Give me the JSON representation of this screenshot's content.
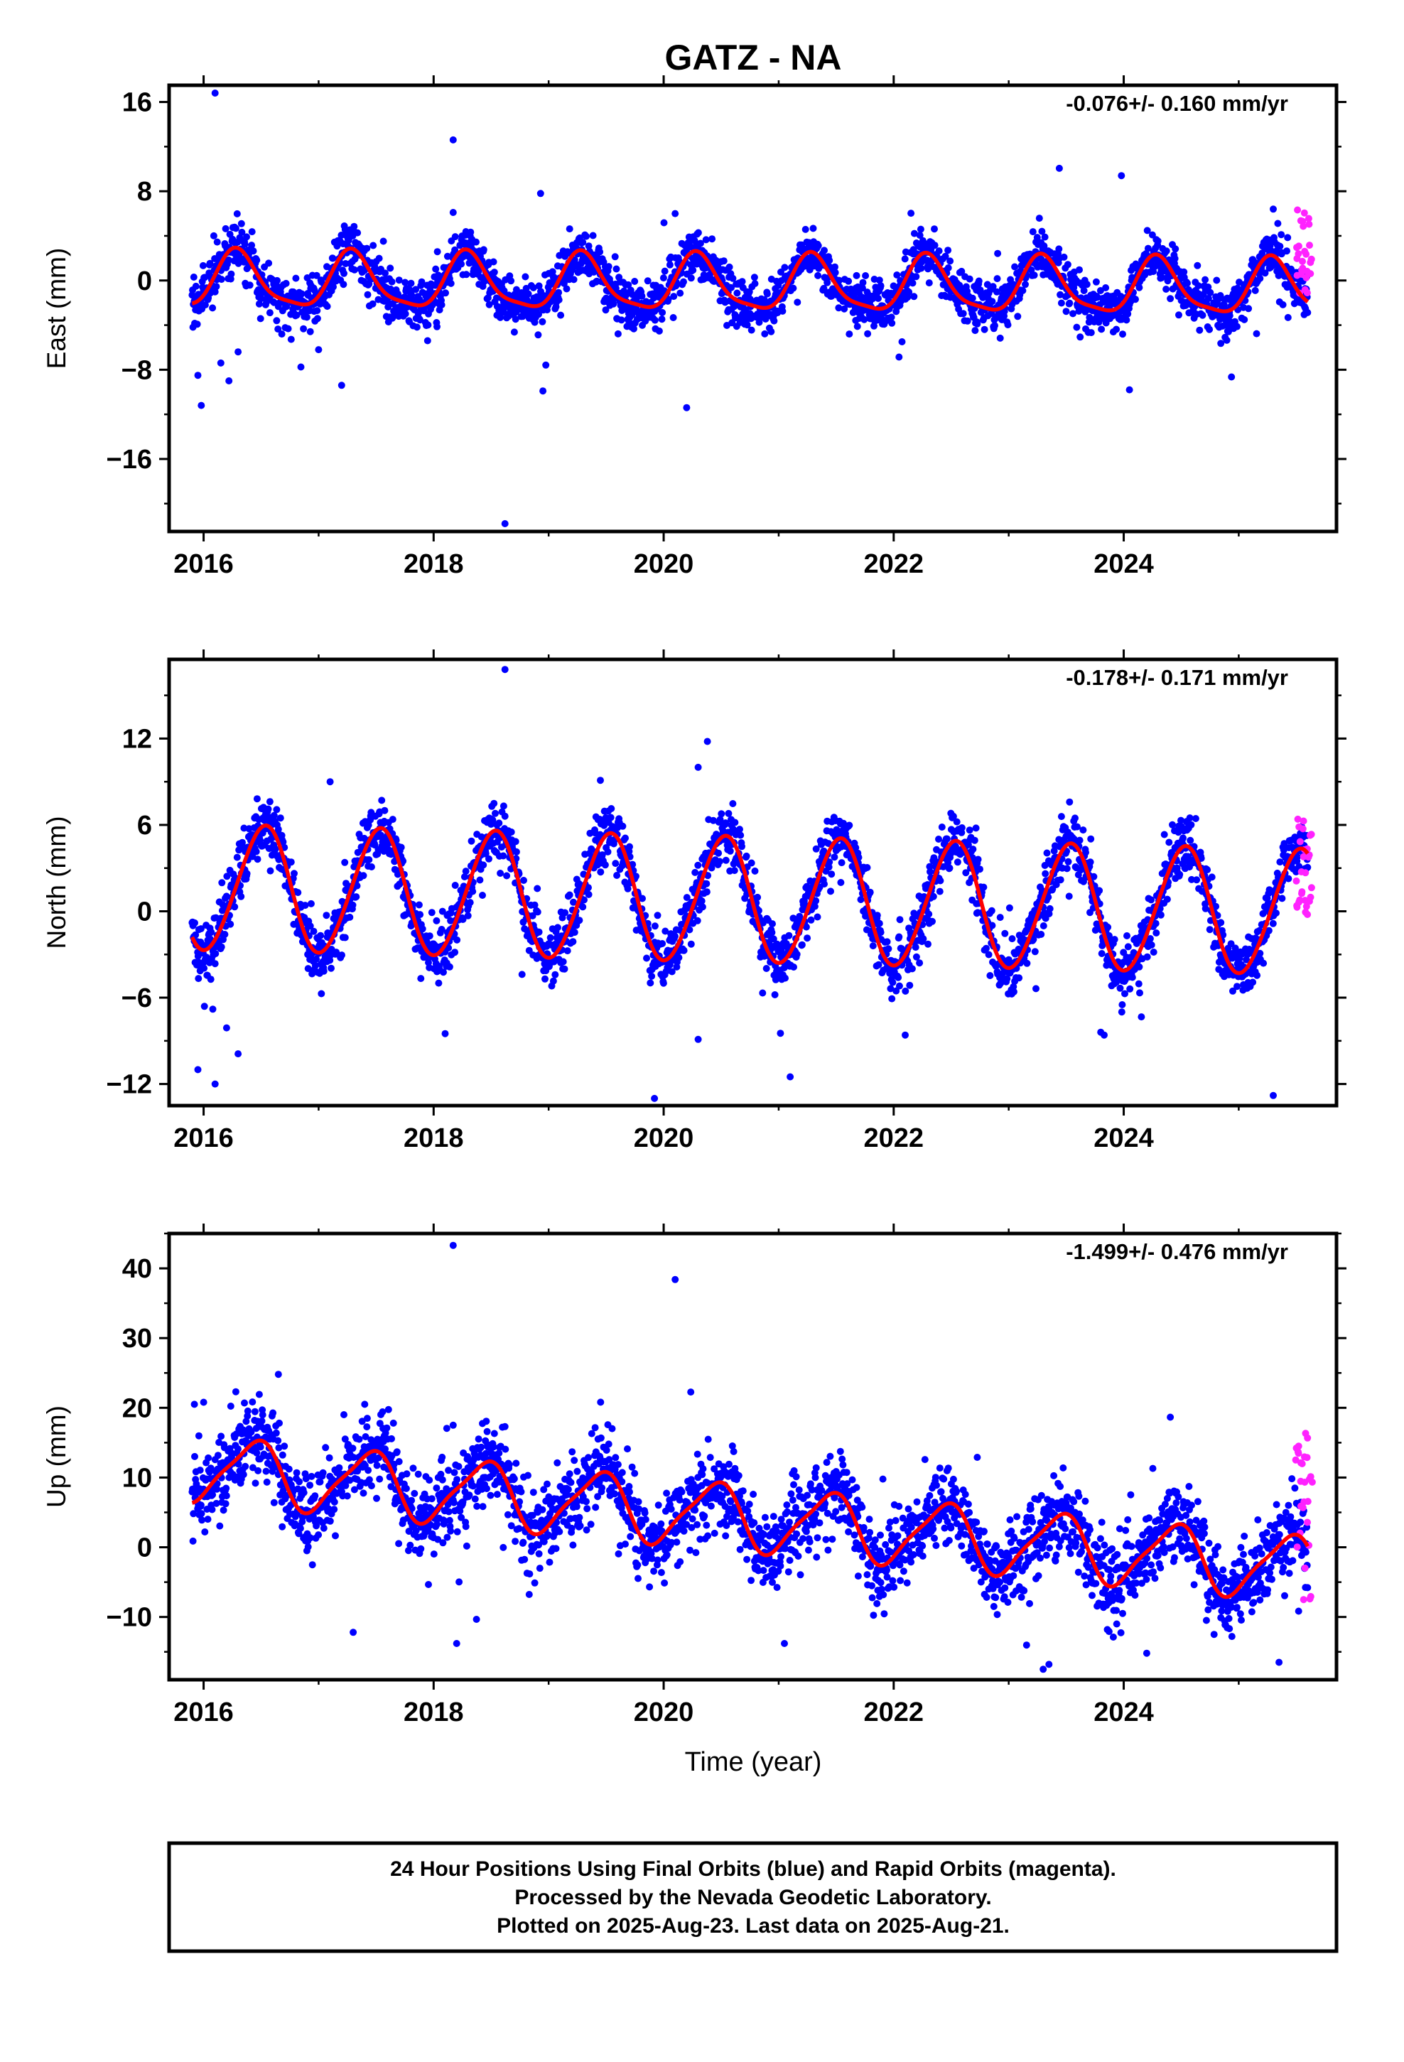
{
  "title": "GATZ - NA",
  "footer": {
    "line1": "24 Hour Positions Using Final Orbits (blue) and Rapid Orbits (magenta).",
    "line2": "Processed by the Nevada Geodetic Laboratory.",
    "line3": "Plotted on 2025-Aug-23. Last data on 2025-Aug-21."
  },
  "colors": {
    "final_orbits": "#0000ff",
    "rapid_orbits": "#ff22ff",
    "model_fit": "#ff0000",
    "frame": "#000000"
  },
  "chart_data": [
    {
      "type": "scatter",
      "component": "East",
      "ylabel": "East (mm)",
      "xlabel": "",
      "rate": "-0.076+/- 0.160 mm/yr",
      "xlim": [
        2015.7,
        2025.85
      ],
      "ylim": [
        -22.5,
        17.5
      ],
      "xticks": [
        2016,
        2018,
        2020,
        2022,
        2024
      ],
      "xtick_labels": [
        "2016",
        "2018",
        "2020",
        "2022",
        "2024"
      ],
      "yticks": [
        16,
        8,
        0,
        -8,
        -16
      ],
      "ytick_labels": [
        "16",
        "8",
        "0",
        "−8",
        "−16"
      ],
      "grid": false,
      "model": {
        "start": 2015.9,
        "end": 2025.6,
        "offset": -0.4,
        "rate": -0.076,
        "seasonal_annual": [
          -0.66,
          2.35
        ],
        "seasonal_semiannual": [
          -0.6,
          -0.1
        ],
        "scatter_sd": 1.1
      },
      "outliers": [
        {
          "x": 2016.1,
          "y": 16.8
        },
        {
          "x": 2018.17,
          "y": 12.6
        },
        {
          "x": 2023.98,
          "y": 9.4
        },
        {
          "x": 2018.93,
          "y": 7.8
        },
        {
          "x": 2020.1,
          "y": 6.0
        },
        {
          "x": 2025.3,
          "y": 6.4
        },
        {
          "x": 2018.17,
          "y": 6.1
        },
        {
          "x": 2018.62,
          "y": -21.8
        },
        {
          "x": 2015.98,
          "y": -11.2
        },
        {
          "x": 2020.2,
          "y": -11.4
        },
        {
          "x": 2018.95,
          "y": -9.9
        },
        {
          "x": 2024.05,
          "y": -9.8
        },
        {
          "x": 2017.2,
          "y": -9.4
        },
        {
          "x": 2016.22,
          "y": -9.0
        },
        {
          "x": 2015.95,
          "y": -8.5
        },
        {
          "x": 2016.15,
          "y": -7.4
        },
        {
          "x": 2016.3,
          "y": -6.4
        },
        {
          "x": 2017.0,
          "y": -6.2
        }
      ],
      "rapid": {
        "start": 2025.5,
        "end": 2025.64,
        "center": 2.6,
        "spread": 4.5
      }
    },
    {
      "type": "scatter",
      "component": "North",
      "ylabel": "North (mm)",
      "xlabel": "",
      "rate": "-0.178+/- 0.171 mm/yr",
      "xlim": [
        2015.7,
        2025.85
      ],
      "ylim": [
        -13.5,
        17.5
      ],
      "xticks": [
        2016,
        2018,
        2020,
        2022,
        2024
      ],
      "xtick_labels": [
        "2016",
        "2018",
        "2020",
        "2022",
        "2024"
      ],
      "yticks": [
        12,
        6,
        0,
        -6,
        -12
      ],
      "ytick_labels": [
        "12",
        "6",
        "0",
        "−6",
        "−12"
      ],
      "grid": false,
      "model": {
        "start": 2015.9,
        "end": 2025.6,
        "offset": 0.8,
        "rate": -0.178,
        "seasonal_annual": [
          -4.3,
          -0.6
        ],
        "seasonal_semiannual": [
          0.0,
          0.3
        ],
        "scatter_sd": 1.0
      },
      "outliers": [
        {
          "x": 2018.62,
          "y": 16.8
        },
        {
          "x": 2020.38,
          "y": 11.8
        },
        {
          "x": 2020.3,
          "y": 10.0
        },
        {
          "x": 2017.1,
          "y": 9.0
        },
        {
          "x": 2019.45,
          "y": 9.1
        },
        {
          "x": 2015.95,
          "y": -11.0
        },
        {
          "x": 2016.1,
          "y": -12.0
        },
        {
          "x": 2019.92,
          "y": -13.0
        },
        {
          "x": 2025.3,
          "y": -12.8
        },
        {
          "x": 2021.1,
          "y": -11.5
        },
        {
          "x": 2016.3,
          "y": -9.9
        },
        {
          "x": 2018.1,
          "y": -8.5
        },
        {
          "x": 2022.1,
          "y": -8.6
        },
        {
          "x": 2023.83,
          "y": -8.6
        },
        {
          "x": 2020.3,
          "y": -8.9
        },
        {
          "x": 2023.8,
          "y": -8.4
        },
        {
          "x": 2016.08,
          "y": -6.8
        },
        {
          "x": 2016.2,
          "y": -8.1
        }
      ],
      "rapid": {
        "start": 2025.5,
        "end": 2025.64,
        "center": 3.0,
        "spread": 4.0
      }
    },
    {
      "type": "scatter",
      "component": "Up",
      "ylabel": "Up (mm)",
      "xlabel": "Time (year)",
      "rate": "-1.499+/- 0.476 mm/yr",
      "xlim": [
        2015.7,
        2025.85
      ],
      "ylim": [
        -19,
        45
      ],
      "xticks": [
        2016,
        2018,
        2020,
        2022,
        2024
      ],
      "xtick_labels": [
        "2016",
        "2018",
        "2020",
        "2022",
        "2024"
      ],
      "yticks": [
        40,
        30,
        20,
        10,
        0,
        -10
      ],
      "ytick_labels": [
        "40",
        "30",
        "20",
        "10",
        "0",
        "−10"
      ],
      "grid": false,
      "model": {
        "start": 2015.9,
        "end": 2025.6,
        "offset": 4.5,
        "rate": -1.499,
        "seasonal_annual": [
          -4.2,
          1.8
        ],
        "seasonal_semiannual": [
          0.6,
          0.8
        ],
        "scatter_sd": 2.8
      },
      "outliers": [
        {
          "x": 2018.17,
          "y": 43.3
        },
        {
          "x": 2020.1,
          "y": 38.4
        },
        {
          "x": 2016.65,
          "y": 24.8
        },
        {
          "x": 2016.28,
          "y": 22.3
        },
        {
          "x": 2015.92,
          "y": 20.5
        },
        {
          "x": 2016.0,
          "y": 20.8
        },
        {
          "x": 2017.65,
          "y": 17.8
        },
        {
          "x": 2018.17,
          "y": 17.5
        },
        {
          "x": 2018.62,
          "y": 17.3
        },
        {
          "x": 2023.3,
          "y": -17.5
        },
        {
          "x": 2023.35,
          "y": -16.8
        },
        {
          "x": 2018.2,
          "y": -13.8
        },
        {
          "x": 2024.2,
          "y": -15.2
        },
        {
          "x": 2025.35,
          "y": -16.5
        },
        {
          "x": 2021.05,
          "y": -13.8
        }
      ],
      "rapid": {
        "start": 2025.5,
        "end": 2025.64,
        "center": 4.0,
        "spread": 14.0
      }
    }
  ]
}
